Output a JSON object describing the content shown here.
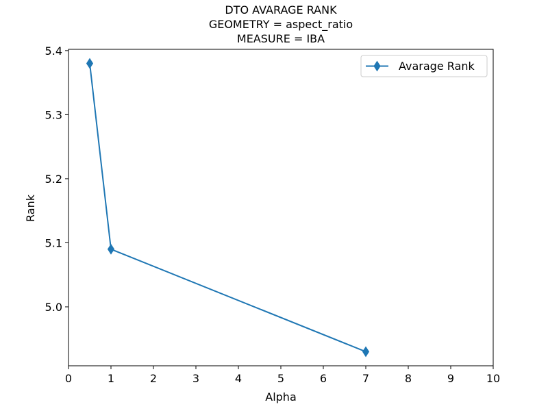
{
  "chart_data": {
    "type": "line",
    "title_lines": [
      "DTO AVARAGE RANK",
      "GEOMETRY = aspect_ratio",
      "MEASURE = IBA"
    ],
    "xlabel": "Alpha",
    "ylabel": "Rank",
    "xlim": [
      0,
      10
    ],
    "ylim": [
      4.908,
      5.402
    ],
    "x_ticks": [
      0,
      1,
      2,
      3,
      4,
      5,
      6,
      7,
      8,
      9,
      10
    ],
    "x_tick_labels": [
      "0",
      "1",
      "2",
      "3",
      "4",
      "5",
      "6",
      "7",
      "8",
      "9",
      "10"
    ],
    "y_ticks": [
      5.0,
      5.1,
      5.2,
      5.3,
      5.4
    ],
    "y_tick_labels": [
      "5.0",
      "5.1",
      "5.2",
      "5.3",
      "5.4"
    ],
    "grid": false,
    "legend_position": "upper right",
    "series": [
      {
        "name": "Avarage Rank",
        "color": "#1f77b4",
        "marker": "thin-diamond",
        "x": [
          0.5,
          1,
          7
        ],
        "y": [
          5.38,
          5.09,
          4.93
        ]
      }
    ]
  }
}
